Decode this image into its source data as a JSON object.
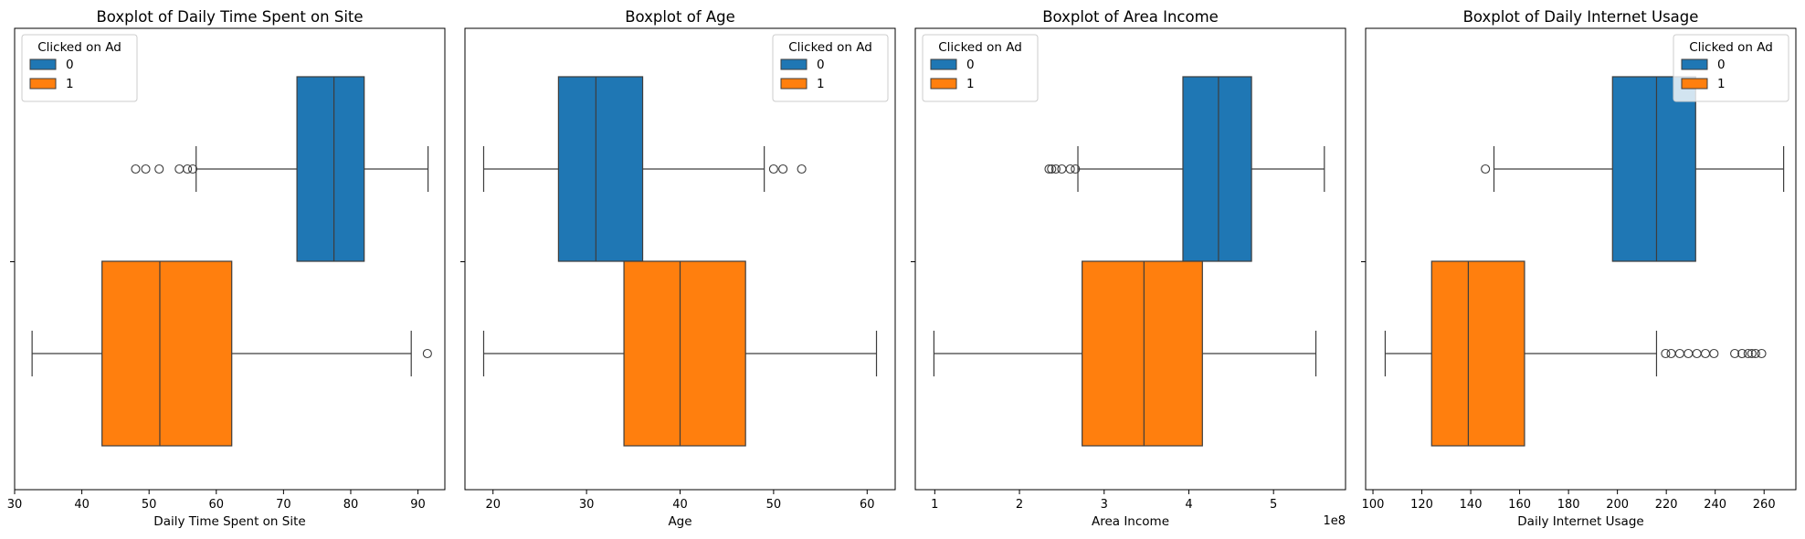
{
  "chart_data": [
    {
      "type": "boxplot",
      "orientation": "horizontal",
      "title": "Boxplot of Daily Time Spent on Site",
      "xlabel": "Daily Time Spent on Site",
      "ylabel": "",
      "xlim": [
        30,
        94
      ],
      "xticks": [
        30,
        40,
        50,
        60,
        70,
        80,
        90
      ],
      "x_offset_text": "",
      "legend": {
        "title": "Clicked on Ad",
        "placement": "upper left"
      },
      "series": [
        {
          "name": "0",
          "color": "#1f77b4",
          "whislo": 57,
          "q1": 72,
          "median": 77.5,
          "q3": 82,
          "whishi": 91.5,
          "fliers": [
            48,
            49.5,
            51.5,
            54.5,
            55.7,
            56.5
          ]
        },
        {
          "name": "1",
          "color": "#ff7f0e",
          "whislo": 32.6,
          "q1": 43,
          "median": 51.6,
          "q3": 62.3,
          "whishi": 89,
          "fliers": [
            91.4
          ]
        }
      ]
    },
    {
      "type": "boxplot",
      "orientation": "horizontal",
      "title": "Boxplot of Age",
      "xlabel": "Age",
      "ylabel": "",
      "xlim": [
        17,
        63
      ],
      "xticks": [
        20,
        30,
        40,
        50,
        60
      ],
      "x_offset_text": "",
      "legend": {
        "title": "Clicked on Ad",
        "placement": "upper right"
      },
      "series": [
        {
          "name": "0",
          "color": "#1f77b4",
          "whislo": 19,
          "q1": 27,
          "median": 31,
          "q3": 36,
          "whishi": 49,
          "fliers": [
            50,
            51,
            53
          ]
        },
        {
          "name": "1",
          "color": "#ff7f0e",
          "whislo": 19,
          "q1": 34,
          "median": 40,
          "q3": 47,
          "whishi": 61,
          "fliers": []
        }
      ]
    },
    {
      "type": "boxplot",
      "orientation": "horizontal",
      "title": "Boxplot of Area Income",
      "xlabel": "Area Income",
      "ylabel": "",
      "xlim": [
        0.77,
        5.85
      ],
      "xticks": [
        1,
        2,
        3,
        4,
        5
      ],
      "x_offset_text": "1e8",
      "legend": {
        "title": "Clicked on Ad",
        "placement": "upper left"
      },
      "series": [
        {
          "name": "0",
          "color": "#1f77b4",
          "whislo": 2.69,
          "q1": 3.93,
          "median": 4.35,
          "q3": 4.74,
          "whishi": 5.6,
          "fliers": [
            2.35,
            2.38,
            2.43,
            2.5,
            2.6,
            2.66
          ]
        },
        {
          "name": "1",
          "color": "#ff7f0e",
          "whislo": 0.99,
          "q1": 2.74,
          "median": 3.47,
          "q3": 4.16,
          "whishi": 5.5,
          "fliers": []
        }
      ]
    },
    {
      "type": "boxplot",
      "orientation": "horizontal",
      "title": "Boxplot of Daily Internet Usage",
      "xlabel": "Daily Internet Usage",
      "ylabel": "",
      "xlim": [
        97,
        273
      ],
      "xticks": [
        100,
        120,
        140,
        160,
        180,
        200,
        220,
        240,
        260
      ],
      "x_offset_text": "",
      "legend": {
        "title": "Clicked on Ad",
        "placement": "upper right"
      },
      "series": [
        {
          "name": "0",
          "color": "#1f77b4",
          "whislo": 149.5,
          "q1": 198,
          "median": 216,
          "q3": 232,
          "whishi": 268,
          "fliers": [
            146
          ]
        },
        {
          "name": "1",
          "color": "#ff7f0e",
          "whislo": 105,
          "q1": 124,
          "median": 139,
          "q3": 162,
          "whishi": 216,
          "fliers": [
            219.7,
            222,
            225.5,
            229,
            232.5,
            236,
            239.5,
            248,
            251,
            253.5,
            255,
            256.5,
            259
          ]
        }
      ]
    }
  ]
}
